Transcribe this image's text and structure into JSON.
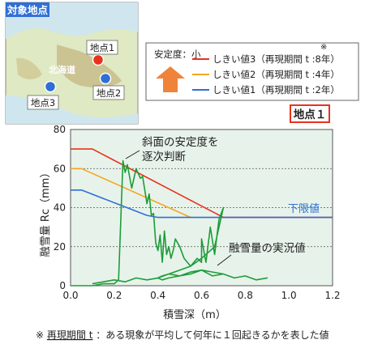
{
  "map": {
    "title": "対象地点",
    "region_label": "北海道",
    "points": [
      {
        "label": "地点1",
        "color": "#e8321e"
      },
      {
        "label": "地点2",
        "color": "#2f6fd6"
      },
      {
        "label": "地点3",
        "color": "#2f6fd6"
      }
    ]
  },
  "legend": {
    "stability_label": "安定度：小",
    "note_mark": "※",
    "arrow_color": "#f0833a",
    "entries": [
      {
        "label": "しきい値3（再現期間 t :8年）",
        "color": "#e8321e"
      },
      {
        "label": "しきい値2（再現期間 t :4年）",
        "color": "#f5a623"
      },
      {
        "label": "しきい値1（再現期間 t :2年）",
        "color": "#2f6fd6"
      }
    ]
  },
  "point_badge": "地点１",
  "annotations": {
    "judge_line1": "斜面の安定度を",
    "judge_line2": "逐次判断",
    "lower_limit": "下限値",
    "actual": "融雪量の実況値"
  },
  "footnote": {
    "mark": "※ ",
    "term": "再現期間 t",
    "text": "：ある現象が平均して何年に１回起きるかを表した値"
  },
  "chart_data": {
    "type": "line",
    "xlabel": "積雪深（m）",
    "ylabel": "融雪量 Rc（mm）",
    "xlim": [
      0,
      1.2
    ],
    "ylim": [
      0,
      80
    ],
    "xticks": [
      "0.0",
      "0.2",
      "0.4",
      "0.6",
      "0.8",
      "1.0",
      "1.2"
    ],
    "yticks": [
      "0",
      "20",
      "40",
      "60",
      "80"
    ],
    "grid": "horizontal dotted",
    "background": "#e7f3ea",
    "series": [
      {
        "name": "しきい値3",
        "color": "#e8321e",
        "x": [
          0.0,
          0.1,
          0.7,
          1.2
        ],
        "y": [
          70,
          70,
          35,
          35
        ]
      },
      {
        "name": "しきい値2",
        "color": "#f5a623",
        "x": [
          0.0,
          0.05,
          0.55
        ],
        "y": [
          60,
          60,
          35
        ]
      },
      {
        "name": "しきい値1",
        "color": "#2f6fd6",
        "x": [
          0.0,
          0.05,
          0.35,
          0.4,
          1.2
        ],
        "y": [
          49,
          49,
          36,
          35,
          35
        ]
      },
      {
        "name": "融雪量の実況値",
        "color": "#1e9c3a",
        "x": [
          0.0,
          0.05,
          0.1,
          0.15,
          0.2,
          0.22,
          0.24,
          0.25,
          0.26,
          0.28,
          0.3,
          0.32,
          0.33,
          0.35,
          0.36,
          0.37,
          0.38,
          0.39,
          0.4,
          0.41,
          0.42,
          0.43,
          0.44,
          0.45,
          0.46,
          0.47,
          0.48,
          0.5,
          0.52,
          0.55,
          0.58,
          0.6,
          0.6,
          0.62,
          0.64,
          0.66,
          0.68,
          0.7,
          0.66,
          0.6,
          0.55,
          0.5,
          0.45,
          0.42,
          0.4,
          0.45,
          0.5,
          0.55,
          0.6,
          0.65,
          0.7,
          0.75,
          0.8,
          0.85,
          0.9,
          0.85,
          0.8,
          0.75,
          0.7,
          0.65,
          0.6,
          0.55,
          0.5,
          0.45,
          0.42,
          0.4,
          0.35,
          0.3,
          0.25,
          0.2,
          0.15,
          0.1
        ],
        "y": [
          0,
          0,
          0,
          1,
          1,
          3,
          64,
          58,
          62,
          50,
          60,
          55,
          56,
          42,
          47,
          36,
          37,
          22,
          18,
          26,
          12,
          28,
          16,
          20,
          14,
          18,
          24,
          20,
          14,
          10,
          14,
          12,
          24,
          12,
          30,
          16,
          34,
          40,
          20,
          14,
          10,
          8,
          6,
          5,
          4,
          6,
          5,
          7,
          8,
          5,
          6,
          4,
          5,
          3,
          4,
          3,
          5,
          4,
          6,
          7,
          8,
          6,
          5,
          4,
          3,
          4,
          3,
          4,
          2,
          3,
          2,
          1
        ]
      }
    ]
  }
}
